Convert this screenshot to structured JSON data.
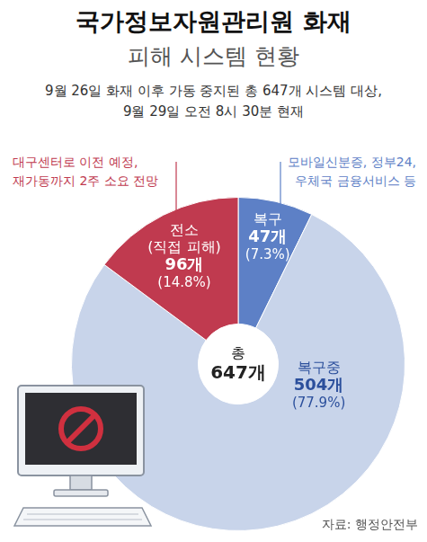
{
  "chart_data": {
    "type": "doughnut",
    "title": "국가정보자원관리원 화재",
    "subtitle": "피해 시스템 현황",
    "description": [
      "9월 26일 화재 이후 가동 중지된 총 647개 시스템 대상,",
      "9월 29일 오전 8시 30분 현재"
    ],
    "categories": [
      "복구",
      "복구중",
      "전소 (직접 피해)"
    ],
    "values": [
      47,
      504,
      96
    ],
    "value_labels": [
      "47개",
      "504개",
      "96개"
    ],
    "percent_labels": [
      "(7.3%)",
      "(77.9%)",
      "(14.8%)"
    ],
    "colors": [
      "#5d80c6",
      "#c8d4ea",
      "#c03a4f"
    ],
    "data_labels": true,
    "center_label": "총",
    "total_label": "647개",
    "annotations": [
      {
        "category": "전소 (직접 피해)",
        "text": [
          "대구센터로 이전 예정,",
          "재가동까지 2주 소요 전망"
        ]
      },
      {
        "category": "복구",
        "text": [
          "모바일신분증, 정부24,",
          "우체국 금융서비스 등"
        ]
      }
    ],
    "source": "자료: 행정안전부"
  }
}
